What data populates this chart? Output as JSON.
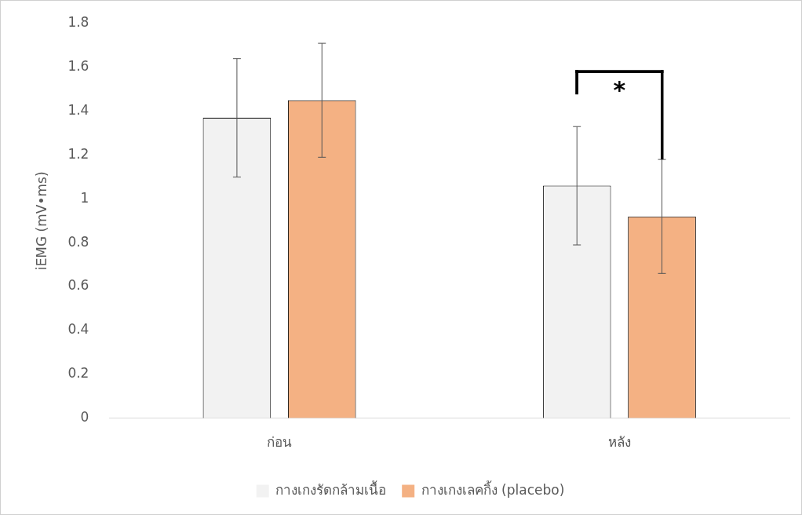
{
  "chart_data": {
    "type": "bar",
    "ylabel": "iEMG (mV•ms)",
    "categories": [
      "ก่อน",
      "หลัง"
    ],
    "series": [
      {
        "name": "กางเกงรัดกล้ามเนื้อ",
        "color": "#f2f2f2",
        "values": [
          1.37,
          1.06
        ],
        "errors": [
          [
            1.1,
            1.64
          ],
          [
            0.79,
            1.33
          ]
        ]
      },
      {
        "name": "กางเกงเลคกิ้ง (placebo)",
        "color": "#f4b183",
        "values": [
          1.45,
          0.92
        ],
        "errors": [
          [
            1.19,
            1.71
          ],
          [
            0.66,
            1.18
          ]
        ]
      }
    ],
    "ylim": [
      0,
      1.8
    ],
    "yticks": [
      0,
      0.2,
      0.4,
      0.6,
      0.8,
      1,
      1.2,
      1.4,
      1.6,
      1.8
    ],
    "grid": false,
    "legend": "bottom",
    "annotations": [
      "*"
    ]
  }
}
